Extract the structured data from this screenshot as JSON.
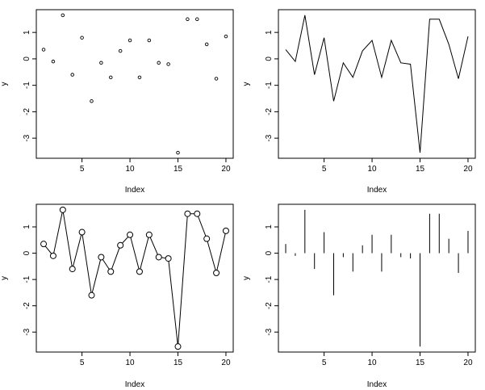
{
  "chart_data": [
    {
      "type": "scatter",
      "panel": "points",
      "xlabel": "Index",
      "ylabel": "y",
      "x": [
        1,
        2,
        3,
        4,
        5,
        6,
        7,
        8,
        9,
        10,
        11,
        12,
        13,
        14,
        15,
        16,
        17,
        18,
        19,
        20
      ],
      "y": [
        0.35,
        -0.1,
        1.65,
        -0.6,
        0.8,
        -1.6,
        -0.15,
        -0.7,
        0.3,
        0.7,
        -0.7,
        0.7,
        -0.15,
        -0.2,
        -3.55,
        1.5,
        1.5,
        0.55,
        -0.75,
        0.85
      ],
      "xticks": [
        5,
        10,
        15,
        20
      ],
      "yticks": [
        -3,
        -2,
        -1,
        0,
        1
      ],
      "xlim": [
        0.24,
        20.76
      ],
      "ylim": [
        -3.76,
        1.86
      ]
    },
    {
      "type": "line",
      "panel": "lines",
      "xlabel": "Index",
      "ylabel": "y",
      "x": [
        1,
        2,
        3,
        4,
        5,
        6,
        7,
        8,
        9,
        10,
        11,
        12,
        13,
        14,
        15,
        16,
        17,
        18,
        19,
        20
      ],
      "y": [
        0.35,
        -0.1,
        1.65,
        -0.6,
        0.8,
        -1.6,
        -0.15,
        -0.7,
        0.3,
        0.7,
        -0.7,
        0.7,
        -0.15,
        -0.2,
        -3.55,
        1.5,
        1.5,
        0.55,
        -0.75,
        0.85
      ],
      "xticks": [
        5,
        10,
        15,
        20
      ],
      "yticks": [
        -3,
        -2,
        -1,
        0,
        1
      ],
      "xlim": [
        0.24,
        20.76
      ],
      "ylim": [
        -3.76,
        1.86
      ]
    },
    {
      "type": "line",
      "panel": "overplotted",
      "xlabel": "Index",
      "ylabel": "y",
      "x": [
        1,
        2,
        3,
        4,
        5,
        6,
        7,
        8,
        9,
        10,
        11,
        12,
        13,
        14,
        15,
        16,
        17,
        18,
        19,
        20
      ],
      "y": [
        0.35,
        -0.1,
        1.65,
        -0.6,
        0.8,
        -1.6,
        -0.15,
        -0.7,
        0.3,
        0.7,
        -0.7,
        0.7,
        -0.15,
        -0.2,
        -3.55,
        1.5,
        1.5,
        0.55,
        -0.75,
        0.85
      ],
      "xticks": [
        5,
        10,
        15,
        20
      ],
      "yticks": [
        -3,
        -2,
        -1,
        0,
        1
      ],
      "xlim": [
        0.24,
        20.76
      ],
      "ylim": [
        -3.76,
        1.86
      ]
    },
    {
      "type": "bar",
      "panel": "histogram-like",
      "xlabel": "Index",
      "ylabel": "y",
      "x": [
        1,
        2,
        3,
        4,
        5,
        6,
        7,
        8,
        9,
        10,
        11,
        12,
        13,
        14,
        15,
        16,
        17,
        18,
        19,
        20
      ],
      "y": [
        0.35,
        -0.1,
        1.65,
        -0.6,
        0.8,
        -1.6,
        -0.15,
        -0.7,
        0.3,
        0.7,
        -0.7,
        0.7,
        -0.15,
        -0.2,
        -3.55,
        1.5,
        1.5,
        0.55,
        -0.75,
        0.85
      ],
      "xticks": [
        5,
        10,
        15,
        20
      ],
      "yticks": [
        -3,
        -2,
        -1,
        0,
        1
      ],
      "xlim": [
        0.24,
        20.76
      ],
      "ylim": [
        -3.76,
        1.86
      ]
    }
  ]
}
